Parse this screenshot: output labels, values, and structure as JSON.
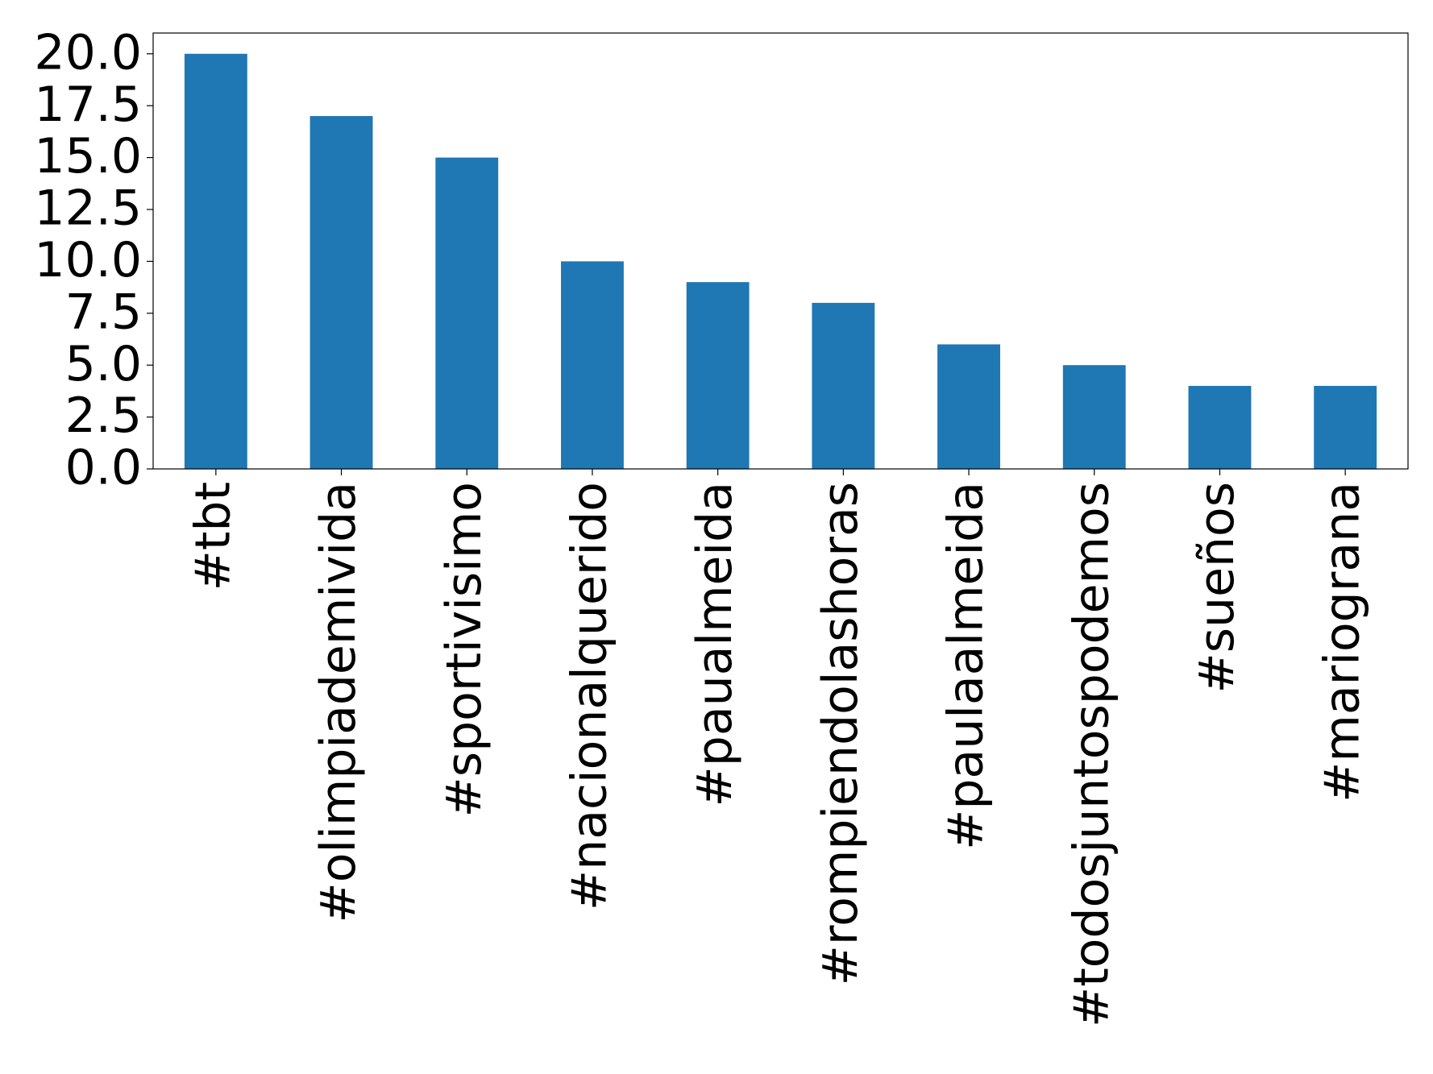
{
  "chart_data": {
    "type": "bar",
    "categories": [
      "#tbt",
      "#olimpiademivida",
      "#sportivisimo",
      "#nacionalquerido",
      "#paualmeida",
      "#rompiendolashoras",
      "#paulaalmeida",
      "#todosjuntospodemos",
      "#sueños",
      "#mariograna"
    ],
    "values": [
      20,
      17,
      15,
      10,
      9,
      8,
      6,
      5,
      4,
      4
    ],
    "color": "#1f77b4",
    "ylim": [
      0,
      21
    ],
    "yticks": [
      {
        "value": 0,
        "label": "0.0"
      },
      2.5,
      {
        "value": 5,
        "label": "5.0"
      },
      7.5,
      {
        "value": 10,
        "label": "10.0"
      },
      12.5,
      {
        "value": 15,
        "label": "15.0"
      },
      17.5,
      {
        "value": 20,
        "label": "20.0"
      }
    ],
    "grid": false
  }
}
